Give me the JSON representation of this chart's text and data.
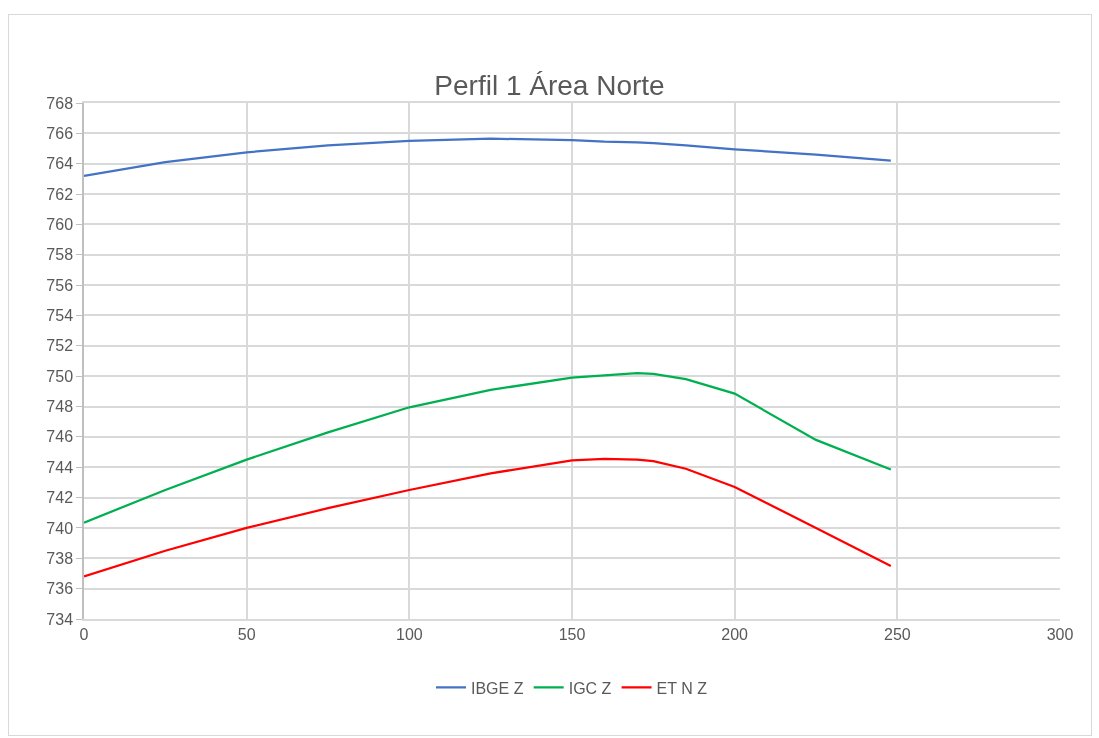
{
  "chart_data": {
    "type": "line",
    "title": "Perfil 1 Área Norte",
    "x": [
      0,
      25,
      50,
      75,
      100,
      125,
      150,
      160,
      170,
      175,
      185,
      200,
      225,
      248
    ],
    "series": [
      {
        "name": "IBGE Z",
        "color": "#4472c4",
        "values": [
          763.2,
          764.1,
          764.75,
          765.2,
          765.5,
          765.65,
          765.55,
          765.45,
          765.4,
          765.35,
          765.2,
          764.95,
          764.6,
          764.2
        ]
      },
      {
        "name": "IGC Z",
        "color": "#00b050",
        "values": [
          740.35,
          742.5,
          744.5,
          746.3,
          747.95,
          749.1,
          749.9,
          750.05,
          750.2,
          750.15,
          749.8,
          748.85,
          745.8,
          743.85
        ]
      },
      {
        "name": "ET N Z",
        "color": "#ff0000",
        "values": [
          736.8,
          738.5,
          740.0,
          741.3,
          742.5,
          743.6,
          744.45,
          744.55,
          744.5,
          744.4,
          743.9,
          742.7,
          740.0,
          737.5
        ]
      }
    ],
    "xlim": [
      0,
      300
    ],
    "xticks": [
      0,
      50,
      100,
      150,
      200,
      250,
      300
    ],
    "ylim": [
      734,
      768
    ],
    "yticks": [
      734,
      736,
      738,
      740,
      742,
      744,
      746,
      748,
      750,
      752,
      754,
      756,
      758,
      760,
      762,
      764,
      766,
      768
    ],
    "grid": true,
    "legend": "bottom",
    "marker": "none",
    "line_style": "solid"
  }
}
